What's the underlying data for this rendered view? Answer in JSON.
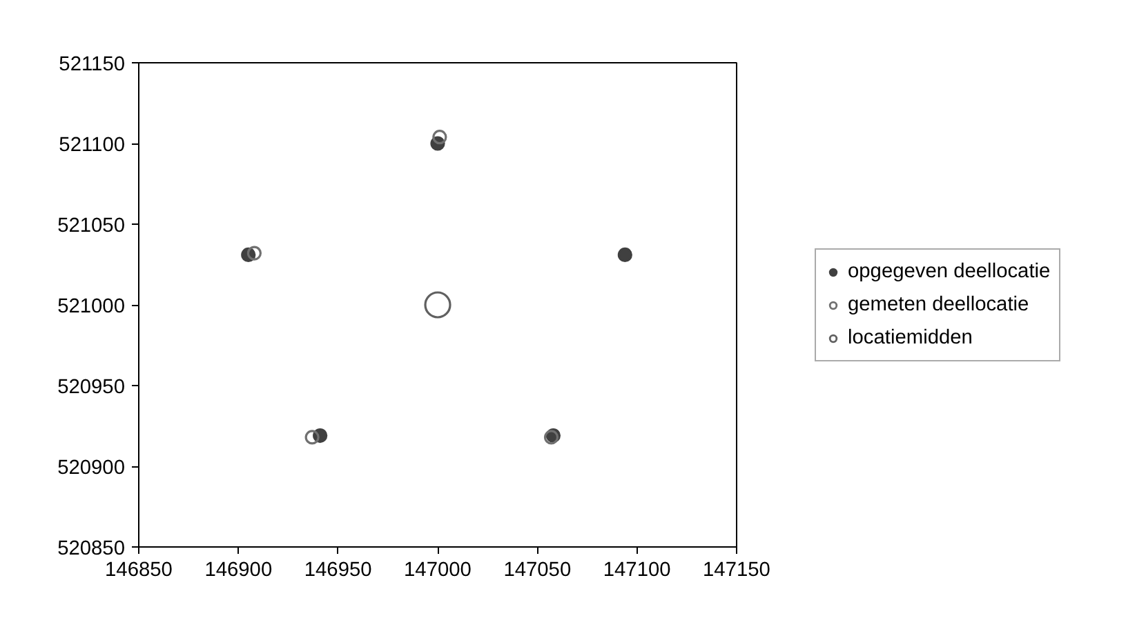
{
  "chart_data": {
    "type": "scatter",
    "series": [
      {
        "name": "opgegeven deellocatie",
        "color": "#404040",
        "x": [
          147000,
          146905,
          147094,
          146941,
          147058
        ],
        "values": [
          521100,
          521031,
          521031,
          520919,
          520919
        ]
      },
      {
        "name": "gemeten deellocatie",
        "color": "#707070",
        "x": [
          147001,
          146908,
          146937,
          147057
        ],
        "values": [
          521104,
          521032,
          520918,
          520918
        ]
      },
      {
        "name": "locatiemidden",
        "color": "#606060",
        "x": [
          147000
        ],
        "values": [
          521000
        ]
      }
    ],
    "xlim": [
      146850,
      147150
    ],
    "xticks": [
      146850,
      146900,
      146950,
      147000,
      147050,
      147100,
      147150
    ],
    "ylim": [
      520850,
      521150
    ],
    "yticks": [
      520850,
      520900,
      520950,
      521000,
      521050,
      521100,
      521150
    ],
    "grid": false,
    "legend": "right",
    "marker": "circle"
  }
}
